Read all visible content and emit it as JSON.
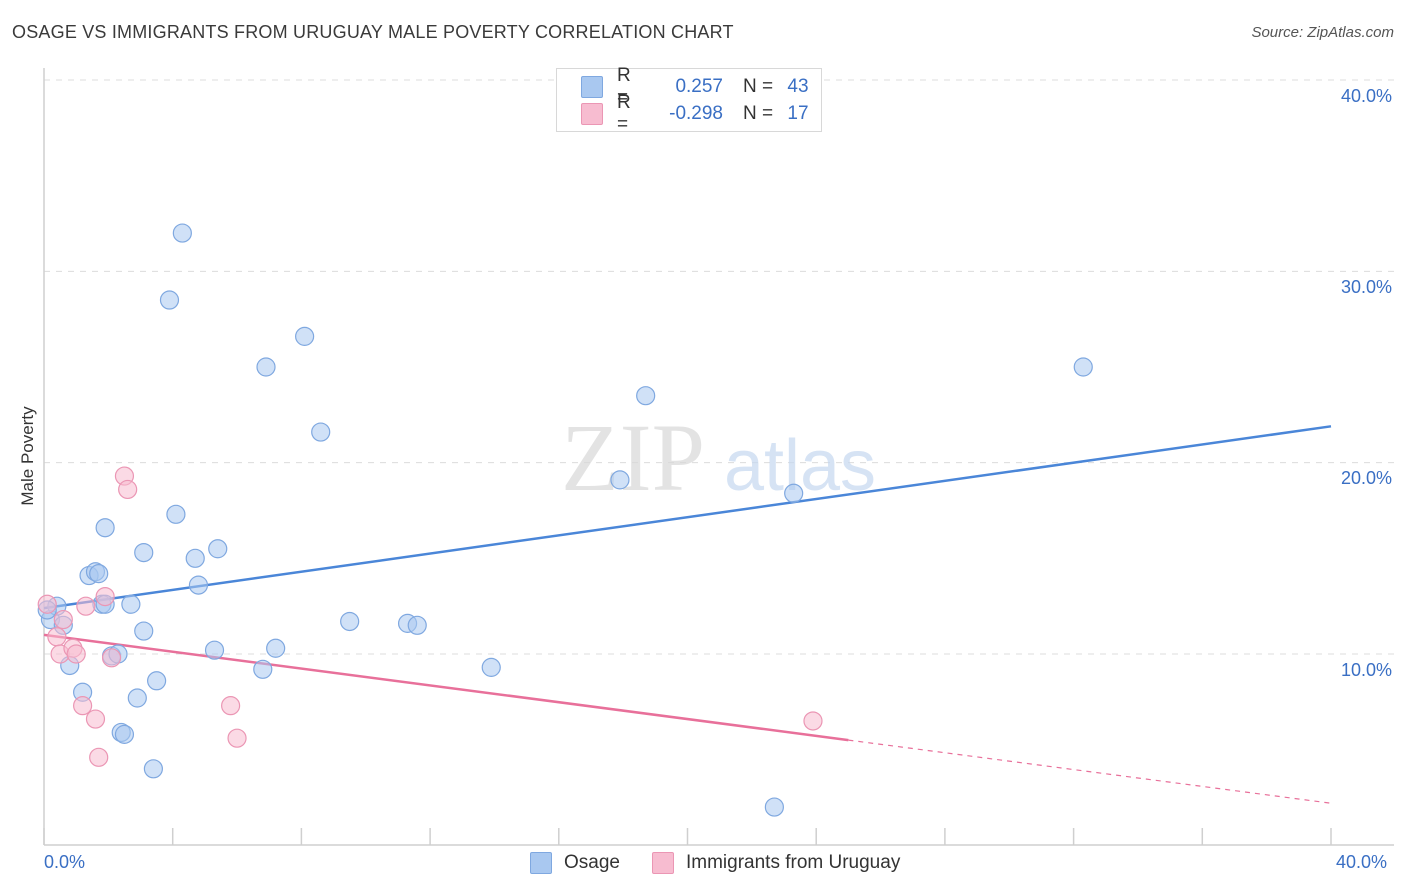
{
  "title": "OSAGE VS IMMIGRANTS FROM URUGUAY MALE POVERTY CORRELATION CHART",
  "source": "Source: ZipAtlas.com",
  "watermark": {
    "zip": "ZIP",
    "atlas": "atlas"
  },
  "legend": {
    "rows": [
      {
        "r_label": "R =",
        "r_value": "0.257",
        "n_label": "N =",
        "n_value": "43",
        "color": "#a9c8f0"
      },
      {
        "r_label": "R =",
        "r_value": "-0.298",
        "n_label": "N =",
        "n_value": "17",
        "color": "#f7bcd0"
      }
    ]
  },
  "bottom_legend": [
    {
      "label": "Osage",
      "color": "#a9c8f0"
    },
    {
      "label": "Immigrants from Uruguay",
      "color": "#f7bcd0"
    }
  ],
  "axis": {
    "x_min_label": "0.0%",
    "x_max_label": "40.0%",
    "y_ticks": [
      "40.0%",
      "30.0%",
      "20.0%",
      "10.0%"
    ],
    "ylabel": "Male Poverty"
  },
  "chart_data": {
    "type": "scatter",
    "title": "OSAGE VS IMMIGRANTS FROM URUGUAY MALE POVERTY CORRELATION CHART",
    "xlabel": "",
    "ylabel": "Male Poverty",
    "xlim": [
      0,
      40
    ],
    "ylim": [
      0,
      40
    ],
    "series": [
      {
        "name": "Osage",
        "color": "#4a86d8",
        "fill": "#a9c8f0",
        "trend": {
          "x0": 0,
          "y0": 12.4,
          "x1": 40,
          "y1": 21.9,
          "dashed_from": null
        },
        "points": [
          [
            0.2,
            11.8
          ],
          [
            0.4,
            12.5
          ],
          [
            0.6,
            11.5
          ],
          [
            0.8,
            9.4
          ],
          [
            1.2,
            8.0
          ],
          [
            1.4,
            14.1
          ],
          [
            1.6,
            14.3
          ],
          [
            1.7,
            14.2
          ],
          [
            1.8,
            12.6
          ],
          [
            1.9,
            12.6
          ],
          [
            1.9,
            16.6
          ],
          [
            2.1,
            9.9
          ],
          [
            2.3,
            10.0
          ],
          [
            2.4,
            5.9
          ],
          [
            2.5,
            5.8
          ],
          [
            2.7,
            12.6
          ],
          [
            2.9,
            7.7
          ],
          [
            3.1,
            11.2
          ],
          [
            3.1,
            15.3
          ],
          [
            3.4,
            4.0
          ],
          [
            3.5,
            8.6
          ],
          [
            3.9,
            28.5
          ],
          [
            4.1,
            17.3
          ],
          [
            4.3,
            32.0
          ],
          [
            4.7,
            15.0
          ],
          [
            4.8,
            13.6
          ],
          [
            5.3,
            10.2
          ],
          [
            5.4,
            15.5
          ],
          [
            6.8,
            9.2
          ],
          [
            6.9,
            25.0
          ],
          [
            7.2,
            10.3
          ],
          [
            8.1,
            26.6
          ],
          [
            8.6,
            21.6
          ],
          [
            9.5,
            11.7
          ],
          [
            11.3,
            11.6
          ],
          [
            11.6,
            11.5
          ],
          [
            13.9,
            9.3
          ],
          [
            17.9,
            19.1
          ],
          [
            18.7,
            23.5
          ],
          [
            22.7,
            2.0
          ],
          [
            23.3,
            18.4
          ],
          [
            32.3,
            25.0
          ],
          [
            0.1,
            12.3
          ]
        ]
      },
      {
        "name": "Immigrants from Uruguay",
        "color": "#e8709a",
        "fill": "#f7bcd0",
        "trend": {
          "x0": 0,
          "y0": 11.0,
          "x1": 25,
          "y1": 5.5,
          "dashed_to": 40,
          "dashed_y": 2.2
        },
        "points": [
          [
            0.1,
            12.6
          ],
          [
            0.4,
            10.9
          ],
          [
            0.5,
            10.0
          ],
          [
            0.6,
            11.8
          ],
          [
            0.9,
            10.3
          ],
          [
            1.0,
            10.0
          ],
          [
            1.2,
            7.3
          ],
          [
            1.3,
            12.5
          ],
          [
            1.6,
            6.6
          ],
          [
            1.7,
            4.6
          ],
          [
            1.9,
            13.0
          ],
          [
            2.1,
            9.8
          ],
          [
            2.5,
            19.3
          ],
          [
            2.6,
            18.6
          ],
          [
            5.8,
            7.3
          ],
          [
            6.0,
            5.6
          ],
          [
            23.9,
            6.5
          ]
        ]
      }
    ]
  }
}
